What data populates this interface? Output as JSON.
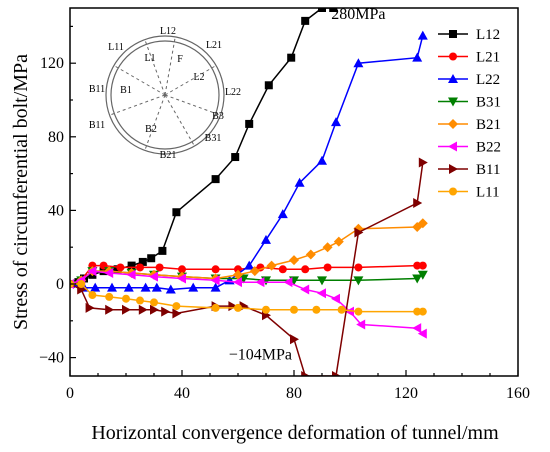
{
  "chart_data": {
    "type": "line",
    "title": "",
    "xlabel": "Horizontal convergence deformation of tunnel/mm",
    "ylabel": "Stress of circumferential bolt/MPa",
    "xlim": [
      0,
      160
    ],
    "ylim": [
      -50,
      150
    ],
    "xticks": [
      0,
      40,
      80,
      120,
      160
    ],
    "yticks": [
      -40,
      0,
      40,
      80,
      120
    ],
    "grid": false,
    "legend": "top-right",
    "annotations": [
      {
        "text": "280MPa",
        "x": 103,
        "y": 144
      },
      {
        "text": "−104MPa",
        "x": 68,
        "y": -41
      }
    ],
    "inset": {
      "labels": [
        "L12",
        "L21",
        "L11",
        "L1",
        "F",
        "L2",
        "L22",
        "B11",
        "B1",
        "B3",
        "B2",
        "B31",
        "B11",
        "B21"
      ]
    },
    "series": [
      {
        "name": "L12",
        "color": "#000000",
        "marker": "square",
        "x": [
          0,
          3,
          5,
          8,
          12,
          17,
          22,
          26,
          29,
          33,
          38,
          52,
          59,
          64,
          71,
          79,
          84,
          90,
          94
        ],
        "y": [
          0,
          1,
          3,
          5,
          7,
          8,
          10,
          12,
          14,
          18,
          39,
          57,
          69,
          87,
          108,
          123,
          143,
          150,
          150
        ]
      },
      {
        "name": "L21",
        "color": "#ff0000",
        "marker": "circle",
        "x": [
          0,
          4,
          8,
          12,
          18,
          25,
          32,
          40,
          52,
          60,
          68,
          76,
          84,
          92,
          103,
          124,
          126
        ],
        "y": [
          0,
          2,
          10,
          10,
          9,
          9,
          9,
          8,
          8,
          8,
          9,
          8,
          8,
          9,
          9,
          10,
          10
        ]
      },
      {
        "name": "L22",
        "color": "#0000ff",
        "marker": "triangle-up",
        "x": [
          0,
          5,
          9,
          15,
          21,
          27,
          31,
          36,
          44,
          52,
          57,
          64,
          70,
          76,
          82,
          90,
          95,
          103,
          124,
          126
        ],
        "y": [
          0,
          -2,
          -2,
          -2,
          -2,
          -2,
          -2,
          -3,
          -2,
          -2,
          2,
          10,
          24,
          38,
          55,
          67,
          88,
          120,
          123,
          135
        ]
      },
      {
        "name": "B31",
        "color": "#007f00",
        "marker": "triangle-down",
        "x": [
          0,
          4,
          8,
          14,
          22,
          30,
          40,
          52,
          62,
          70,
          80,
          90,
          103,
          124,
          126
        ],
        "y": [
          0,
          2,
          7,
          7,
          6,
          5,
          4,
          3,
          3,
          2,
          2,
          2,
          2,
          3,
          5
        ]
      },
      {
        "name": "B21",
        "color": "#ff8c00",
        "marker": "diamond",
        "x": [
          0,
          4,
          8,
          14,
          22,
          30,
          40,
          52,
          60,
          66,
          72,
          80,
          86,
          92,
          96,
          103,
          124,
          126
        ],
        "y": [
          0,
          2,
          7,
          7,
          6,
          5,
          4,
          3,
          5,
          7,
          10,
          13,
          16,
          20,
          23,
          30,
          31,
          33
        ]
      },
      {
        "name": "B22",
        "color": "#ff00ff",
        "marker": "triangle-left",
        "x": [
          0,
          4,
          8,
          14,
          22,
          30,
          40,
          52,
          60,
          68,
          78,
          84,
          90,
          95,
          100,
          104,
          124,
          126
        ],
        "y": [
          0,
          2,
          7,
          6,
          5,
          4,
          3,
          2,
          1,
          1,
          1,
          -3,
          -5,
          -8,
          -15,
          -22,
          -24,
          -27
        ]
      },
      {
        "name": "B11",
        "color": "#7f0000",
        "marker": "triangle-right",
        "x": [
          0,
          4,
          7,
          14,
          20,
          26,
          30,
          34,
          38,
          52,
          58,
          62,
          70,
          80,
          84,
          95,
          103,
          124,
          126
        ],
        "y": [
          0,
          -3,
          -13,
          -14,
          -14,
          -14,
          -14,
          -15,
          -16,
          -12,
          -12,
          -12,
          -17,
          -30,
          -50,
          -50,
          28,
          44,
          66
        ]
      },
      {
        "name": "L11",
        "color": "#ffa500",
        "marker": "circle",
        "x": [
          0,
          4,
          8,
          14,
          20,
          25,
          30,
          38,
          52,
          60,
          70,
          80,
          88,
          97,
          103,
          124,
          126
        ],
        "y": [
          0,
          0,
          -6,
          -7,
          -8,
          -9,
          -10,
          -12,
          -13,
          -13,
          -14,
          -14,
          -14,
          -14,
          -15,
          -15,
          -15
        ]
      }
    ]
  }
}
